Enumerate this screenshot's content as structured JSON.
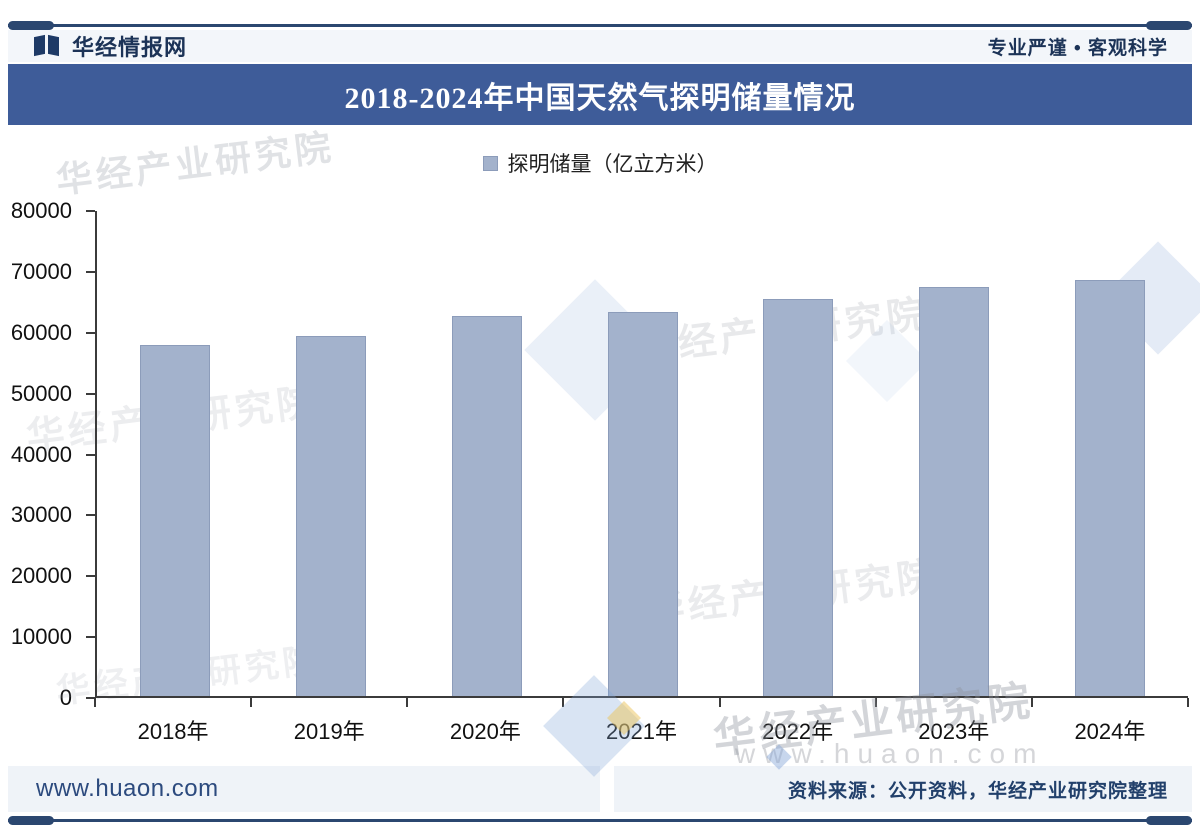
{
  "header": {
    "brand": "华经情报网",
    "slogan": "专业严谨 • 客观科学"
  },
  "title_bar": {
    "title": "2018-2024年中国天然气探明储量情况"
  },
  "legend": {
    "label": "探明储量（亿立方米）"
  },
  "chart_data": {
    "type": "bar",
    "title": "2018-2024年中国天然气探明储量情况",
    "categories": [
      "2018年",
      "2019年",
      "2020年",
      "2021年",
      "2022年",
      "2023年",
      "2024年"
    ],
    "series": [
      {
        "name": "探明储量（亿立方米）",
        "values": [
          57900,
          59400,
          62700,
          63300,
          65500,
          67400,
          68700
        ]
      }
    ],
    "xlabel": "",
    "ylabel": "",
    "ylim": [
      0,
      80000
    ],
    "yticks": [
      0,
      10000,
      20000,
      30000,
      40000,
      50000,
      60000,
      70000,
      80000
    ],
    "grid": false,
    "legend_position": "top-center",
    "bar_color": "#A3B2CC",
    "bar_border_color": "#8C9CBA"
  },
  "watermarks": {
    "research_text": "华经产业研究院",
    "site_text": "www.huaon.com"
  },
  "footer": {
    "site": "www.huaon.com",
    "source": "资料来源：公开资料，华经产业研究院整理"
  },
  "colors": {
    "accent_navy": "#2B4770",
    "brand_text": "#1C3357",
    "title_bar_bg": "#3E5C99",
    "bar_fill": "#A3B2CC",
    "header_bg": "#F3F6FA",
    "footer_bg": "#EFF3F8",
    "axis": "#3b3b3b"
  }
}
